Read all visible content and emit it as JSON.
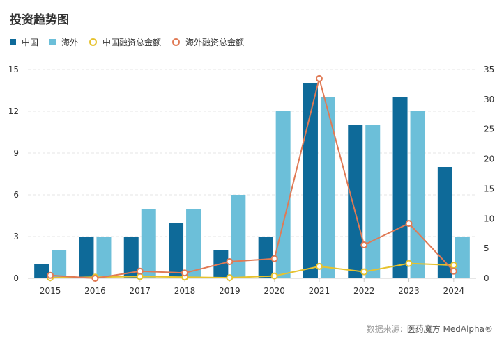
{
  "title": "投资趋势图",
  "source": {
    "label": "数据来源:",
    "brand": "医药魔方 MedAlpha®"
  },
  "colors": {
    "china_bar": "#0e6a99",
    "overseas_bar": "#6cbfd9",
    "china_line": "#e6c22e",
    "overseas_line": "#e07a55",
    "grid": "#e6e6e6",
    "axis_text": "#333333"
  },
  "chart_data": {
    "type": "bar",
    "categories": [
      "2015",
      "2016",
      "2017",
      "2018",
      "2019",
      "2020",
      "2021",
      "2022",
      "2023",
      "2024"
    ],
    "left_axis": {
      "min": 0,
      "max": 15,
      "ticks": [
        0,
        3,
        6,
        9,
        12,
        15
      ]
    },
    "right_axis": {
      "min": 0,
      "max": 35,
      "ticks": [
        0,
        5,
        10,
        15,
        20,
        25,
        30,
        35
      ]
    },
    "grid": true,
    "legend_position": "top-left",
    "series": [
      {
        "name": "中国",
        "type": "bar",
        "axis": "left",
        "values": [
          1,
          3,
          3,
          4,
          2,
          3,
          14,
          11,
          13,
          8
        ]
      },
      {
        "name": "海外",
        "type": "bar",
        "axis": "left",
        "values": [
          2,
          3,
          5,
          5,
          6,
          12,
          13,
          11,
          12,
          3
        ]
      },
      {
        "name": "中国融资总金额",
        "type": "line",
        "axis": "right",
        "values": [
          0.1,
          0.2,
          0.3,
          0.2,
          0.1,
          0.4,
          2.0,
          1.1,
          2.5,
          2.2
        ]
      },
      {
        "name": "海外融资总金额",
        "type": "line",
        "axis": "right",
        "values": [
          0.5,
          0,
          1.2,
          0.9,
          2.8,
          3.3,
          33.5,
          5.6,
          9.2,
          1.2
        ]
      }
    ]
  }
}
